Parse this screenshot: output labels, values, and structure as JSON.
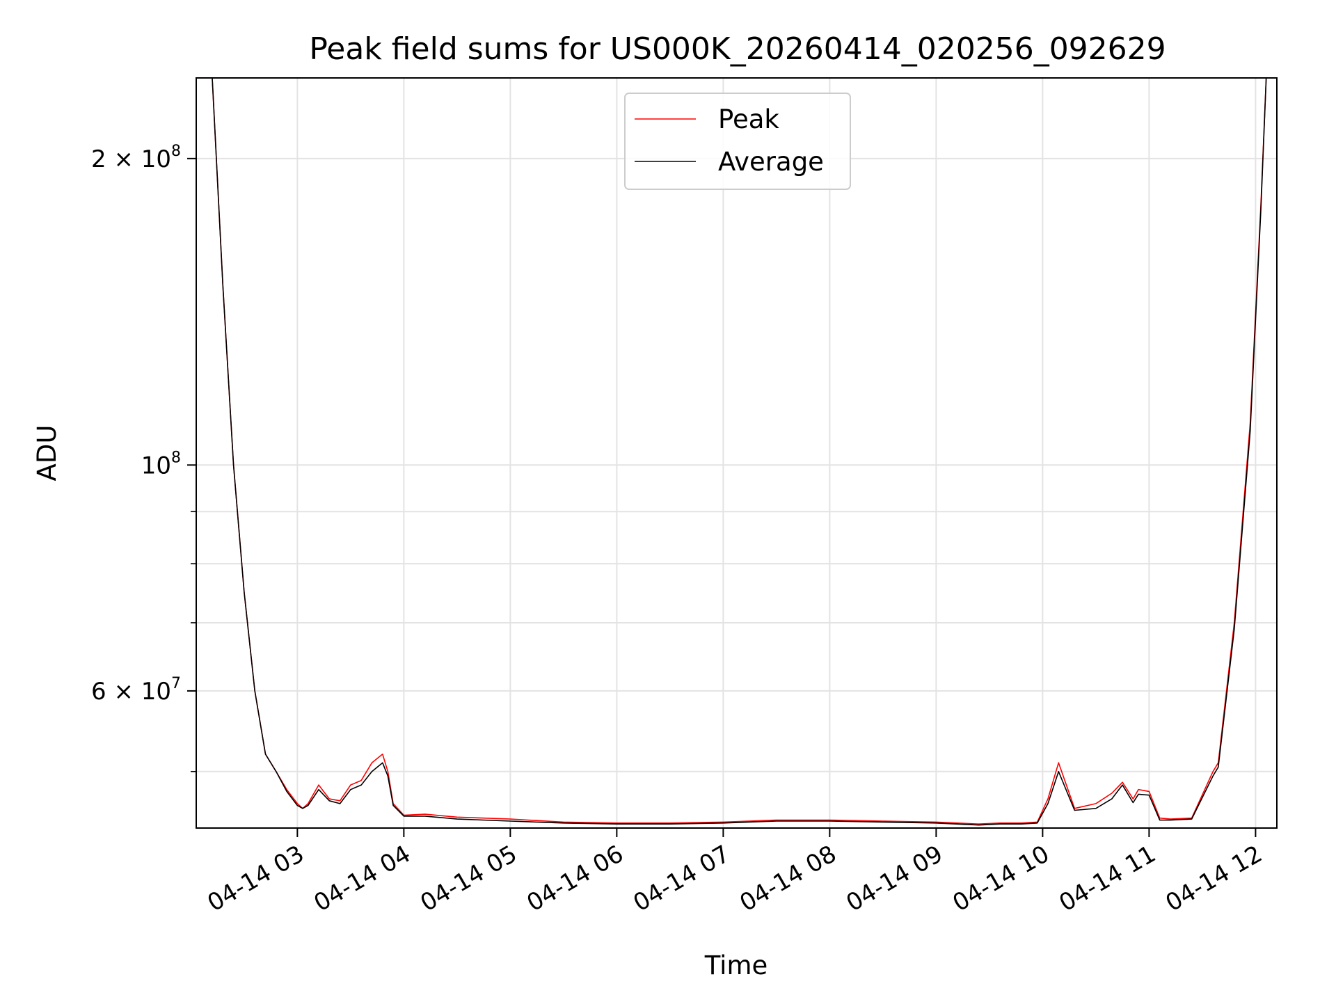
{
  "chart_data": {
    "type": "line",
    "title": "Peak field sums for US000K_20260414_020256_092629",
    "xlabel": "Time",
    "ylabel": "ADU",
    "yscale": "log",
    "grid": true,
    "legend_position": "upper center",
    "x_unit": "hours since 2026-04-14 00:00",
    "xlim": [
      2.05,
      12.2
    ],
    "ylim": [
      44000000,
      240000000
    ],
    "x_ticks": [
      {
        "value": 3,
        "label": "04-14 03"
      },
      {
        "value": 4,
        "label": "04-14 04"
      },
      {
        "value": 5,
        "label": "04-14 05"
      },
      {
        "value": 6,
        "label": "04-14 06"
      },
      {
        "value": 7,
        "label": "04-14 07"
      },
      {
        "value": 8,
        "label": "04-14 08"
      },
      {
        "value": 9,
        "label": "04-14 09"
      },
      {
        "value": 10,
        "label": "04-14 10"
      },
      {
        "value": 11,
        "label": "04-14 11"
      },
      {
        "value": 12,
        "label": "04-14 12"
      }
    ],
    "y_ticks_major": [
      {
        "value": 200000000,
        "base": "2 × 10",
        "exp": "8"
      },
      {
        "value": 100000000,
        "base": "10",
        "exp": "8"
      },
      {
        "value": 60000000,
        "base": "6 × 10",
        "exp": "7"
      }
    ],
    "y_ticks_minor": [
      50000000,
      70000000,
      80000000,
      90000000
    ],
    "series": [
      {
        "name": "Peak",
        "color": "#ff0000",
        "x": [
          2.05,
          2.2,
          2.3,
          2.4,
          2.5,
          2.6,
          2.7,
          2.8,
          2.9,
          3.0,
          3.05,
          3.1,
          3.2,
          3.3,
          3.4,
          3.5,
          3.6,
          3.7,
          3.8,
          3.85,
          3.9,
          4.0,
          4.2,
          4.5,
          5.0,
          5.5,
          6.0,
          6.5,
          7.0,
          7.5,
          8.0,
          8.5,
          9.0,
          9.4,
          9.6,
          9.8,
          9.95,
          10.05,
          10.15,
          10.3,
          10.5,
          10.65,
          10.75,
          10.85,
          10.9,
          11.0,
          11.1,
          11.2,
          11.4,
          11.6,
          11.65,
          11.8,
          11.95,
          12.05,
          12.1,
          12.2
        ],
        "y": [
          240000000,
          240000000,
          150000000,
          100000000,
          75000000,
          60000000,
          52000000,
          50000000,
          48000000,
          46500000,
          46000000,
          46500000,
          48500000,
          47000000,
          46800000,
          48500000,
          49000000,
          51000000,
          52000000,
          50000000,
          46500000,
          45300000,
          45400000,
          45100000,
          44900000,
          44600000,
          44500000,
          44500000,
          44600000,
          44800000,
          44800000,
          44700000,
          44600000,
          44400000,
          44500000,
          44500000,
          44600000,
          47000000,
          51000000,
          46000000,
          46500000,
          47600000,
          48800000,
          47000000,
          48000000,
          47800000,
          45000000,
          44900000,
          45000000,
          50000000,
          51000000,
          70000000,
          110000000,
          180000000,
          240000000,
          240000000
        ]
      },
      {
        "name": "Average",
        "color": "#000000",
        "x": [
          2.05,
          2.2,
          2.3,
          2.4,
          2.5,
          2.6,
          2.7,
          2.8,
          2.9,
          3.0,
          3.05,
          3.1,
          3.2,
          3.3,
          3.4,
          3.5,
          3.6,
          3.7,
          3.8,
          3.85,
          3.9,
          4.0,
          4.2,
          4.5,
          5.0,
          5.5,
          6.0,
          6.5,
          7.0,
          7.5,
          8.0,
          8.5,
          9.0,
          9.4,
          9.6,
          9.8,
          9.95,
          10.05,
          10.15,
          10.3,
          10.5,
          10.65,
          10.75,
          10.85,
          10.9,
          11.0,
          11.1,
          11.2,
          11.4,
          11.6,
          11.65,
          11.8,
          11.95,
          12.05,
          12.1,
          12.2
        ],
        "y": [
          240000000,
          240000000,
          150000000,
          100000000,
          75000000,
          60000000,
          52000000,
          50000000,
          47800000,
          46300000,
          46000000,
          46300000,
          48000000,
          46800000,
          46500000,
          48000000,
          48500000,
          50000000,
          51000000,
          49500000,
          46300000,
          45200000,
          45200000,
          44900000,
          44700000,
          44500000,
          44400000,
          44400000,
          44500000,
          44700000,
          44700000,
          44600000,
          44500000,
          44300000,
          44400000,
          44400000,
          44500000,
          46500000,
          50000000,
          45800000,
          46000000,
          47000000,
          48500000,
          46600000,
          47500000,
          47400000,
          44800000,
          44800000,
          44900000,
          49500000,
          50500000,
          69000000,
          108000000,
          178000000,
          240000000,
          240000000
        ]
      }
    ]
  }
}
